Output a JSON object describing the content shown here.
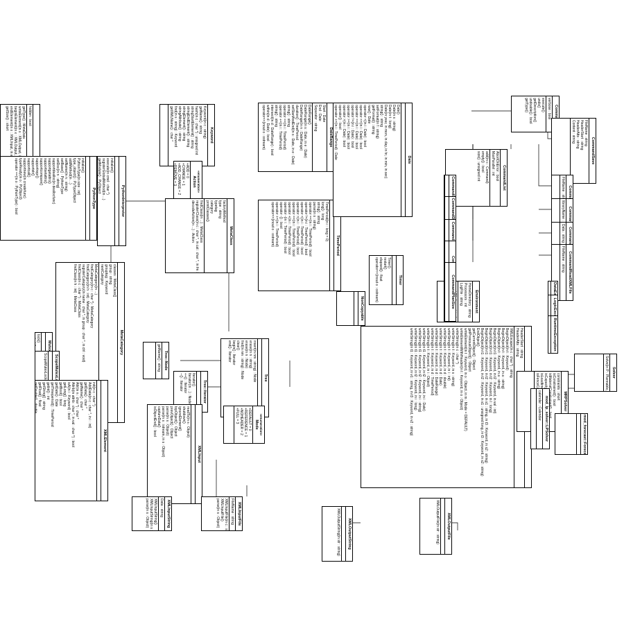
{
  "classes": [
    {
      "id": "Object",
      "name": "Object",
      "attrs": [
        "hidden : bool"
      ],
      "ops": [
        "getType() : MetaData",
        "writeElement(in x : XMLOutput, in i : Keyword, in m : Mode = DEFAULT)",
        "beginElement(in x : XMLOutput, in e : XMLElement)",
        "endElement(in x : XMLInput, in e : XMLElement)",
        "getSize() : short"
      ]
    },
    {
      "id": "PythonType",
      "name": "PythonType",
      "attrs": [],
      "ops": [
        "initialize()",
        "PythonType(in size : int)",
        "type_object() : PyTypeObject",
        "addMethod(in ...)",
        "setName(in n : string)",
        "setBase() : PythonType",
        "setDoc(in n : string)",
        "supportdealloc(in deallocfunc)",
        "supportgetattro()",
        "supportsetattro()",
        "supportcompare()",
        "supportrepr()",
        "supportstr()",
        "supportcall()",
        "supportnew(in createfunc)",
        "typeReady(in o : PyObject)",
        "operator ==(in o : PythonType) : bool"
      ]
    },
    {
      "id": "PythonInterpreter",
      "name": "PythonInterpreter",
      "attrs": [],
      "ops": [
        "initialize()",
        "execute(in cmd : char *)",
        "registerGlobalMethod(in ...)",
        "getModule() : PyObject",
        "getPythonEncoding() : char *"
      ]
    },
    {
      "id": "Keyword",
      "name": "Keyword",
      "attrs": [
        "Keyword(in c : string)",
        "getName() : string",
        "hash(in c : char *) : unsigned int",
        "stringStartElement() : string",
        "stringEndElement() : string",
        "stringElement() : string",
        "stringAttribute() : string",
        "find(in s : string) : Keyword",
        "getXMLName() : char *"
      ],
      "ops": []
    },
    {
      "id": "Action",
      "name": "Action",
      "stereo": "«enumeration»",
      "attrs": [
        "+ADD = 0",
        "+CHANGE = 1",
        "+ADD_CHANGE = 2",
        "+REMOVE = 3"
      ],
      "ops": []
    },
    {
      "id": "MetaCategory",
      "name": "MetaCategory",
      "attrs": [
        "classes : MetaClass[]",
        "group : string",
        "grouptag : Keyword",
        "nextCategory"
      ],
      "ops": [
        "MetaCategory(in ...)",
        "findCategory(in c : char *) : MetaCategory",
        "findCategory(in h : int) : MetaCategory",
        "registerCategory(in name : char *, in group : char *, in ctrl : void)",
        "findClass(in c : char *) : MetaClass",
        "findClass(in h : int) : MetaClass"
      ]
    },
    {
      "id": "MetaClass",
      "name": "MetaClass",
      "attrs": [
        "factoryMethod",
        "type : string",
        "typetag",
        "category",
        "printClasses()"
      ],
      "ops": [
        "findClass(in ...) : MetaClass",
        "registerClass(in c : char *, in cat : char *, in fm : void, in def : bool)",
        "decodeAction(in ...) : Action"
      ]
    },
    {
      "id": "Mutex",
      "name": "Mutex",
      "attrs": [],
      "ops": [
        "lock()",
        "unlock()"
      ]
    },
    {
      "id": "ScopeMutexLock",
      "name": "ScopeMutexLock",
      "attrs": [],
      "ops": [
        "ScopeMutexLock(in m : Mutex)"
      ]
    },
    {
      "id": "XMLElement",
      "name": "XMLElement",
      "attrs": [],
      "ops": [
        "init(in c : char *)",
        "AddData(in c : char *, in i : int)",
        "getData() : char *",
        "getName() : char *",
        "Attr(in n : char *) : char *",
        "Attrib(in attrib : char *, in val : char *) : bool",
        "isA(in i : Keyword) : bool",
        "getLong() : long",
        "getBool() : bool",
        "getDate() : Date",
        "getTimeperiod() : TimePeriod",
        "getInt() : int",
        "getString() : string",
        "getFloat() : float",
        "getDouble() : double",
        "operator ==(in i : Keyword) : bool",
        "operator !=(in i : bool) : bool",
        "operator >>(in ...) : bool",
        "operator >>(in s : string)",
        "operator >>(in d : double)"
      ]
    },
    {
      "id": "DateRange",
      "name": "DateRange",
      "attrs": [
        "Start : Date",
        "End : Date",
        "Separator : string"
      ],
      "ops": [
        "DateRange()",
        "DateRange(in s : Date, in e : Date)",
        "DateRange(in n : DateRange)",
        "duration() : TimePeriod",
        "setStartAndEnd(in s : Date, in e : Date)",
        "string() : string",
        "operator ==(in i : TimePeriod)",
        "operator +=(in i : TimePeriod)",
        "string() : string",
        "intersect(in d : DateRange) : bool",
        "within(in d : Date) : bool",
        "operator<<(inout o : ostream)"
      ]
    },
    {
      "id": "TimePeriod",
      "name": "TimePeriod",
      "attrs": [],
      "ops": [
        "TimePeriod(in i : long = 0)",
        "long() : long",
        "string() : string",
        "parse(in s : string)",
        "operator ==(in i : TimePeriod) : bool",
        "operator !=(in i : TimePeriod) : bool",
        "operator <(in i : TimePeriod) : bool",
        "operator >(in i : TimePeriod) : bool",
        "operator ==(in i : TimePeriod) : bool",
        "operator +(in i : TimePeriod) : bool",
        "operator -(in i : TimePeriod) : bool",
        "operator -() : bool",
        "operator +=(in i : TimePeriod)",
        "operator<<(inout o : ostream)"
      ]
    },
    {
      "id": "Tree",
      "name": "Tree",
      "attrs": [],
      "ops": [
        "insert(in nm : string) : Node",
        "erase(in n : string)",
        "erase(in n : Node)",
        "find(in nm : string) : Node",
        "clear()",
        "begin() : Iterator",
        "end() : Iterator"
      ]
    },
    {
      "id": "TreeNode",
      "name": "Tree::Node",
      "attrs": [
        "getName() : string"
      ],
      "ops": []
    },
    {
      "id": "TreeIterator",
      "name": "Tree::Iterator",
      "attrs": [],
      "ops": [
        "Iterator()",
        "Iterator(in ...) : Node",
        "++() : Iterator",
        "--() : Iterator"
      ]
    },
    {
      "id": "XMLInput",
      "name": "XMLInput",
      "attrs": [],
      "ops": [
        "readTo(in s : Object)",
        "shutdown()",
        "ignoreElement()",
        "topObject() : Object",
        "prevObject() : Object",
        "parse(in s : Object)",
        "parse(in s : istream, in s : Object)",
        "captureData()",
        "isObjectEnd() : bool"
      ]
    },
    {
      "id": "XMLInputString",
      "name": "XMLInputString",
      "attrs": [
        "Data : string"
      ],
      "ops": [
        "XMLInputString()",
        "XMLInputString(in s : string)",
        "parse(in s : Object)"
      ]
    },
    {
      "id": "XMLInputFile",
      "name": "XMLInputFile",
      "attrs": [
        "FileName : string"
      ],
      "ops": [
        "XMLInputFile(in c : string)",
        "XMLInputFile()",
        "parse(in s : Object)"
      ]
    },
    {
      "id": "Mode",
      "name": "Mode",
      "stereo": "«enumeration»",
      "attrs": [
        "+DEFAULT = 0",
        "+REFERENCE = 1",
        "+NOHEADER = 2",
        "+FULL = 3"
      ],
      "ops": []
    },
    {
      "id": "Date",
      "name": "Date",
      "attrs": [],
      "ops": [
        "Date()",
        "Date(in s : string)",
        "Date(in t : long)",
        "Date(in year, in mon, in day, in hr, in min, in sec)",
        "string() : string",
        "setFormat(in f : string)",
        "getFormat() : string",
        "now() : Date",
        "operator <(in i : Date) : bool",
        "operator <=(in i : Date) : bool",
        "operator ==(in i : Date) : bool",
        "operator !=(in i : Date) : bool",
        "operator >=(in i : Date) : bool",
        "operator >(in i : Date) : bool",
        "operator() : bool",
        "operator +=(in i : TimePeriod) : Date",
        "operator -=(in i : TimePeriod) : Date",
        "operator +(in i : TimePeriod)",
        "operator -(in d : Date) : TimePeriod",
        "is_infinite() : bool",
        "operator<<(inout o : ostream)"
      ]
    },
    {
      "id": "Timer",
      "name": "Timer",
      "attrs": [],
      "ops": [
        "Timer()",
        "restart()",
        "elapsed() : float",
        "operator<<(inout o : ostream)"
      ]
    },
    {
      "id": "NonCopyable",
      "name": "NonCopyable",
      "attrs": [],
      "ops": []
    },
    {
      "id": "XMLOutput",
      "name": "XMLOutput",
      "attrs": [
        "HeaderStart : string",
        "HeaderAtts : string"
      ],
      "ops": [
        "XMLEscape(in c : char *) : string",
        "BeginObject(in t : Keyword)",
        "BeginObject(in t : Keyword, in a : string)",
        "BeginObject(in t : Keyword, in a : string)",
        "BeginObject(in t1 : Keyword, in t2 : Keyword, in val : int)",
        "BeginObject(in t1 : Keyword, in t2 : Keyword, in l : long)",
        "BeginObject(in t1 : Keyword, in t2 : Keyword, in s1 : string, in t3 : Keyword, in s2 : string)",
        "BeginObject(in t1 : Keyword, in t2 : Keyword, in s1 : unsigned long, in t3 : Keyword, in s2 : string)",
        "EndObject()",
        "getCurrentObject() : Object",
        "getPreviousObject() : Object",
        "writeElement(in t : Keyword, in o : Object, in m : Mode = DEFAULT)",
        "writeElementWithHeader(in t : Keyword, in o : Object)",
        "writeString(in c : char *)",
        "writeString(in t : Keyword, in s : string)",
        "writeString(in t : Keyword, in i : int)",
        "writeString(in t : Keyword, in d : double)",
        "writeString(in t : Keyword, in d : Date)",
        "writeString(in t : Keyword, in d : DateRange)",
        "writeString(in t : Keyword, in d : TimePeriod)",
        "writeString(in t : Keyword, in i : Object)",
        "writeString(in t1 : Keyword, in t2 : Keyword, in i : Date)",
        "writeString(in t1 : Keyword, in t2 : Keyword, in i : string)",
        "writeString(in t1 : Keyword, in t2 : Keyword, in i : long)",
        "writeString(in t1 : Keyword, in v1 : string, in t3 : Keyword, in v2 : string)"
      ]
    },
    {
      "id": "XMLOutputString",
      "name": "XMLOutputString",
      "attrs": [],
      "ops": [
        "XMLOutputString(in str : string)"
      ]
    },
    {
      "id": "XMLOutputFile",
      "name": "XMLOutputFile",
      "attrs": [],
      "ops": [
        "XMLOutputFile(in str : string)"
      ]
    },
    {
      "id": "Environment",
      "name": "Environment",
      "attrs": [
        "HomeDirectory : string",
        "Processors : int",
        "LogFile : string"
      ],
      "ops": [
        "searchFile(in s : string) : string"
      ]
    },
    {
      "id": "CommandList",
      "name": "CommandList",
      "attrs": [
        "AbortOnError : bool",
        "MaxParallel : int"
      ],
      "ops": [
        "add(in c : Command)",
        "empty() : bool",
        "size() : unsigned int"
      ]
    },
    {
      "id": "CommandCreateOperationPlan",
      "name": "CommandCreateOperationPlan",
      "attrs": [],
      "ops": [
        "getOperationPlan() : OperationPlan"
      ]
    },
    {
      "id": "CommandDeleteOperationPlan",
      "name": "CommandDeleteOperationPlan",
      "attrs": [],
      "ops": []
    },
    {
      "id": "CommandMoveOperationPlan",
      "name": "CommandMoveOperationPlan",
      "attrs": [],
      "ops": []
    },
    {
      "id": "CommandErase",
      "name": "CommandErase",
      "attrs": [],
      "ops": []
    },
    {
      "id": "CommandPlanSize",
      "name": "CommandPlanSize",
      "attrs": [],
      "ops": []
    },
    {
      "id": "Command",
      "name": "Command",
      "attrs": [
        "verbose : bool"
      ],
      "ops": [
        "execute()",
        "undo()",
        "getDescription()",
        "undoable() : bool",
        "getType()"
      ]
    },
    {
      "id": "CommandSave",
      "name": "CommandSave",
      "attrs": [
        "FileName : string",
        "HeaderStart : string",
        "HeaderAtts : string",
        "Content : string"
      ],
      "ops": []
    },
    {
      "id": "CommandSavePlan",
      "name": "CommandSavePlan",
      "attrs": [
        "FileName : string"
      ],
      "ops": []
    },
    {
      "id": "CommandLoadLibrary",
      "name": "CommandLoadLibrary",
      "attrs": [
        "libraryName : string"
      ],
      "ops": []
    },
    {
      "id": "CommandReadXMLString",
      "name": "CommandReadXMLString",
      "attrs": [
        "Data : string"
      ],
      "ops": []
    },
    {
      "id": "CommandReadXMLFile",
      "name": "CommandReadXMLFile",
      "attrs": [
        "FileName : string"
      ],
      "ops": []
    },
    {
      "id": "DataException",
      "name": "DataException",
      "attrs": [],
      "ops": []
    },
    {
      "id": "LogicException",
      "name": "LogicException",
      "attrs": [],
      "ops": []
    },
    {
      "id": "RuntimeException",
      "name": "RuntimeException",
      "attrs": [],
      "ops": []
    },
    {
      "id": "MRPSolver",
      "name": "MRPSolver",
      "attrs": [
        "constraints : short",
        "isConstrained() : bool",
        "isMaterialConstrained() : bool",
        "isCapacityConstrained() : bool",
        "isLeadtimeConstrained() : bool",
        "isFenceConstrained() : bool"
      ],
      "ops": []
    },
    {
      "id": "LPSolver",
      "name": "mod_lp_solver::LPSolver",
      "attrs": [
        "calendar : Calendar"
      ],
      "ops": []
    },
    {
      "id": "ForecastSolver",
      "name": "mod_forecast::ForecastSolver",
      "attrs": [],
      "ops": []
    },
    {
      "id": "Solver",
      "name": "Solver",
      "attrs": [
        "Solve(in P : Plannable, in V : void)"
      ],
      "ops": []
    }
  ]
}
